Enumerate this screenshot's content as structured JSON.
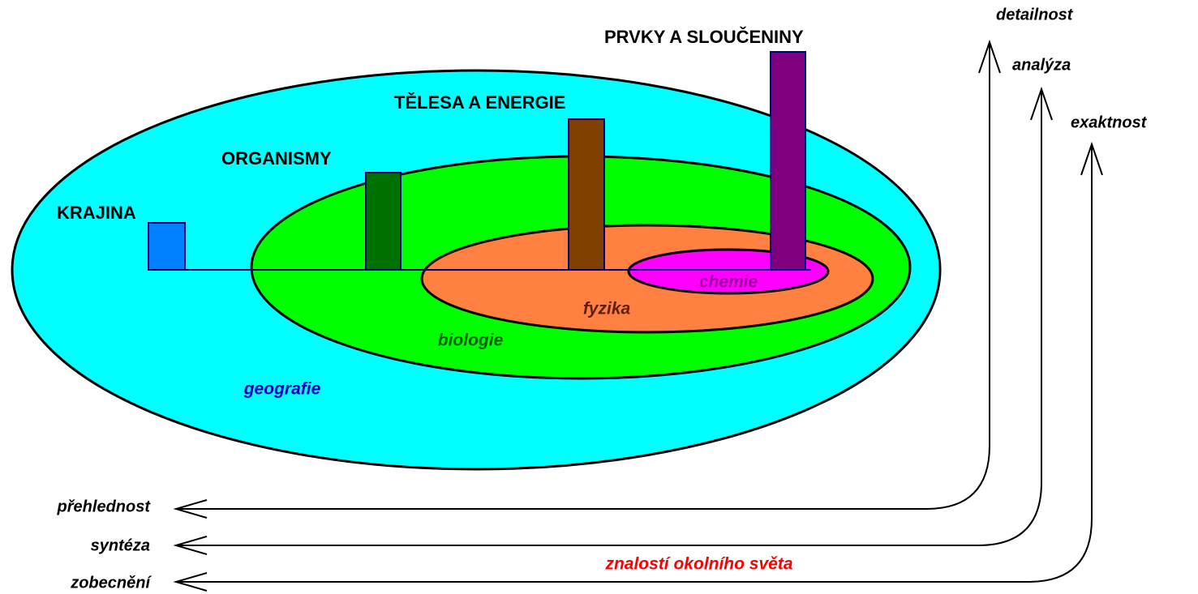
{
  "levels": [
    "KRAJINA",
    "ORGANISMY",
    "TĚLESA A ENERGIE",
    "PRVKY A SLOUČENINY"
  ],
  "sciences": [
    "geografie",
    "biologie",
    "fyzika",
    "chemie"
  ],
  "up_axes": [
    "detailnost",
    "analýza",
    "exaktnost"
  ],
  "left_axes": [
    "přehlednost",
    "syntéza",
    "zobecnění"
  ],
  "axis_caption": "znalostí okolního světa"
}
